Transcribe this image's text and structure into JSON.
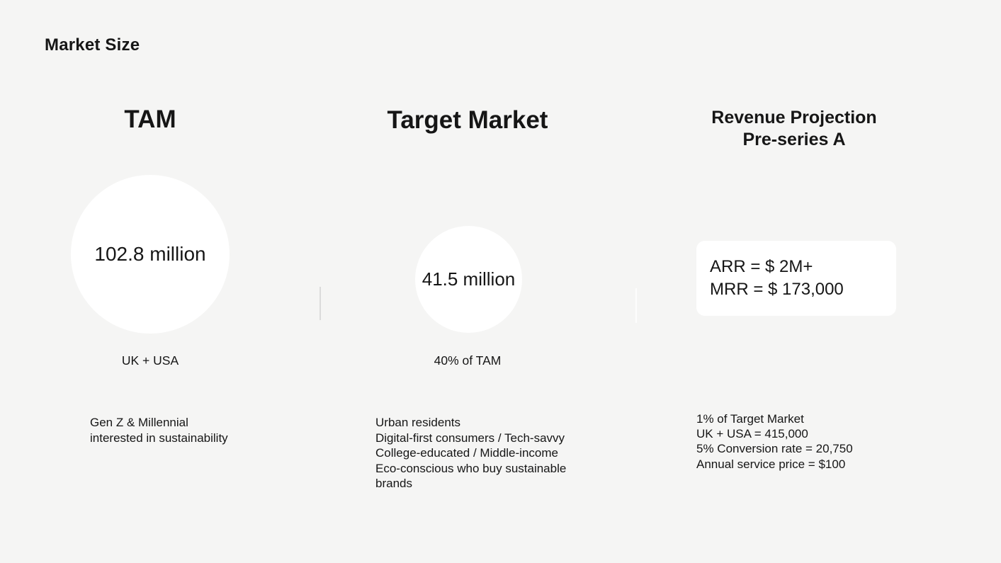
{
  "slide": {
    "title": "Market Size",
    "colors": {
      "background": "#f5f5f4",
      "surface": "#ffffff",
      "text": "#161616",
      "divider_left": "#dbdbdb",
      "divider_right": "#fdfdfd"
    },
    "columns": [
      {
        "heading": "TAM",
        "circle_value": "102.8 million",
        "caption": "UK + USA",
        "description": [
          "Gen Z & Millennial",
          "interested in sustainability"
        ]
      },
      {
        "heading": "Target Market",
        "circle_value": "41.5 million",
        "caption": "40% of TAM",
        "description": [
          "Urban residents",
          "Digital-first consumers / Tech-savvy",
          "College-educated / Middle-income",
          "Eco-conscious who buy sustainable brands"
        ]
      },
      {
        "heading": "Revenue Projection\nPre-series A",
        "card_lines": [
          "ARR = $ 2M+",
          "MRR = $ 173,000"
        ],
        "description": [
          "1% of Target Market",
          "UK + USA = 415,000",
          "5% Conversion rate = 20,750",
          "Annual service price = $100"
        ]
      }
    ]
  }
}
